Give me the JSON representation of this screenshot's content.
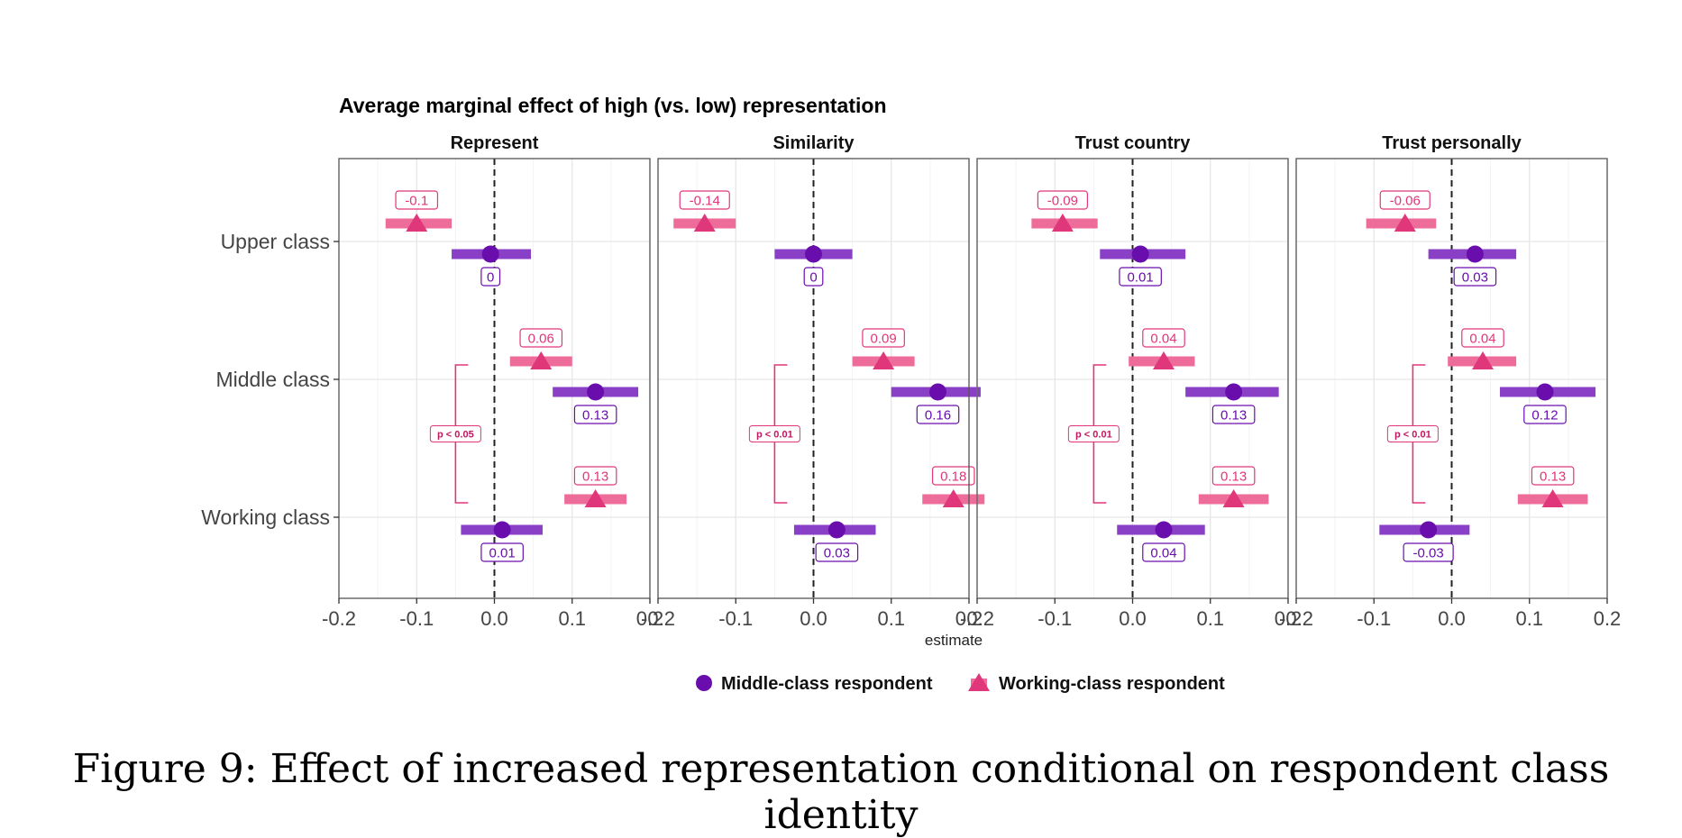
{
  "chart_data": {
    "type": "scatter",
    "subtype": "coefficient-plot-with-confidence-bars",
    "title": "Average marginal effect of high (vs. low) representation",
    "xlabel": "estimate",
    "ylabel": "",
    "xlim": [
      -0.2,
      0.2
    ],
    "xticks": [
      -0.2,
      -0.1,
      0.0,
      0.1,
      0.2
    ],
    "xtick_labels": [
      "-0.2",
      "-0.1",
      "0.0",
      "0.1",
      "0.2"
    ],
    "categories": [
      "Upper class",
      "Middle class",
      "Working class"
    ],
    "grid": true,
    "reference_line": 0,
    "legend_position": "bottom",
    "colors": {
      "middle": "#6a0dad",
      "working": "#e0367a"
    },
    "series": [
      {
        "name": "Middle-class respondent",
        "marker": "circle"
      },
      {
        "name": "Working-class respondent",
        "marker": "triangle"
      }
    ],
    "panels": [
      {
        "name": "Represent",
        "bracket_label": "p < 0.05",
        "points": [
          {
            "category": "Upper class",
            "series": "Working-class respondent",
            "estimate": -0.1,
            "label": "-0.1",
            "ci": [
              -0.14,
              -0.055
            ]
          },
          {
            "category": "Upper class",
            "series": "Middle-class respondent",
            "estimate": -0.005,
            "label": "0",
            "ci": [
              -0.055,
              0.047
            ]
          },
          {
            "category": "Middle class",
            "series": "Working-class respondent",
            "estimate": 0.06,
            "label": "0.06",
            "ci": [
              0.02,
              0.1
            ]
          },
          {
            "category": "Middle class",
            "series": "Middle-class respondent",
            "estimate": 0.13,
            "label": "0.13",
            "ci": [
              0.075,
              0.185
            ]
          },
          {
            "category": "Working class",
            "series": "Working-class respondent",
            "estimate": 0.13,
            "label": "0.13",
            "ci": [
              0.09,
              0.17
            ]
          },
          {
            "category": "Working class",
            "series": "Middle-class respondent",
            "estimate": 0.01,
            "label": "0.01",
            "ci": [
              -0.043,
              0.062
            ]
          }
        ]
      },
      {
        "name": "Similarity",
        "bracket_label": "p < 0.01",
        "points": [
          {
            "category": "Upper class",
            "series": "Working-class respondent",
            "estimate": -0.14,
            "label": "-0.14",
            "ci": [
              -0.18,
              -0.1
            ]
          },
          {
            "category": "Upper class",
            "series": "Middle-class respondent",
            "estimate": 0.0,
            "label": "0",
            "ci": [
              -0.05,
              0.05
            ]
          },
          {
            "category": "Middle class",
            "series": "Working-class respondent",
            "estimate": 0.09,
            "label": "0.09",
            "ci": [
              0.05,
              0.13
            ]
          },
          {
            "category": "Middle class",
            "series": "Middle-class respondent",
            "estimate": 0.16,
            "label": "0.16",
            "ci": [
              0.1,
              0.215
            ]
          },
          {
            "category": "Working class",
            "series": "Working-class respondent",
            "estimate": 0.18,
            "label": "0.18",
            "ci": [
              0.14,
              0.22
            ]
          },
          {
            "category": "Working class",
            "series": "Middle-class respondent",
            "estimate": 0.03,
            "label": "0.03",
            "ci": [
              -0.025,
              0.08
            ]
          }
        ]
      },
      {
        "name": "Trust country",
        "bracket_label": "p < 0.01",
        "points": [
          {
            "category": "Upper class",
            "series": "Working-class respondent",
            "estimate": -0.09,
            "label": "-0.09",
            "ci": [
              -0.13,
              -0.045
            ]
          },
          {
            "category": "Upper class",
            "series": "Middle-class respondent",
            "estimate": 0.01,
            "label": "0.01",
            "ci": [
              -0.042,
              0.068
            ]
          },
          {
            "category": "Middle class",
            "series": "Working-class respondent",
            "estimate": 0.04,
            "label": "0.04",
            "ci": [
              -0.005,
              0.08
            ]
          },
          {
            "category": "Middle class",
            "series": "Middle-class respondent",
            "estimate": 0.13,
            "label": "0.13",
            "ci": [
              0.068,
              0.188
            ]
          },
          {
            "category": "Working class",
            "series": "Working-class respondent",
            "estimate": 0.13,
            "label": "0.13",
            "ci": [
              0.085,
              0.175
            ]
          },
          {
            "category": "Working class",
            "series": "Middle-class respondent",
            "estimate": 0.04,
            "label": "0.04",
            "ci": [
              -0.02,
              0.093
            ]
          }
        ]
      },
      {
        "name": "Trust personally",
        "bracket_label": "p < 0.01",
        "points": [
          {
            "category": "Upper class",
            "series": "Working-class respondent",
            "estimate": -0.06,
            "label": "-0.06",
            "ci": [
              -0.11,
              -0.02
            ]
          },
          {
            "category": "Upper class",
            "series": "Middle-class respondent",
            "estimate": 0.03,
            "label": "0.03",
            "ci": [
              -0.03,
              0.083
            ]
          },
          {
            "category": "Middle class",
            "series": "Working-class respondent",
            "estimate": 0.04,
            "label": "0.04",
            "ci": [
              -0.005,
              0.083
            ]
          },
          {
            "category": "Middle class",
            "series": "Middle-class respondent",
            "estimate": 0.12,
            "label": "0.12",
            "ci": [
              0.062,
              0.185
            ]
          },
          {
            "category": "Working class",
            "series": "Working-class respondent",
            "estimate": 0.13,
            "label": "0.13",
            "ci": [
              0.085,
              0.175
            ]
          },
          {
            "category": "Working class",
            "series": "Middle-class respondent",
            "estimate": -0.03,
            "label": "-0.03",
            "ci": [
              -0.093,
              0.023
            ]
          }
        ]
      }
    ]
  },
  "caption": "Figure 9: Effect of increased representation conditional on respondent class identity"
}
